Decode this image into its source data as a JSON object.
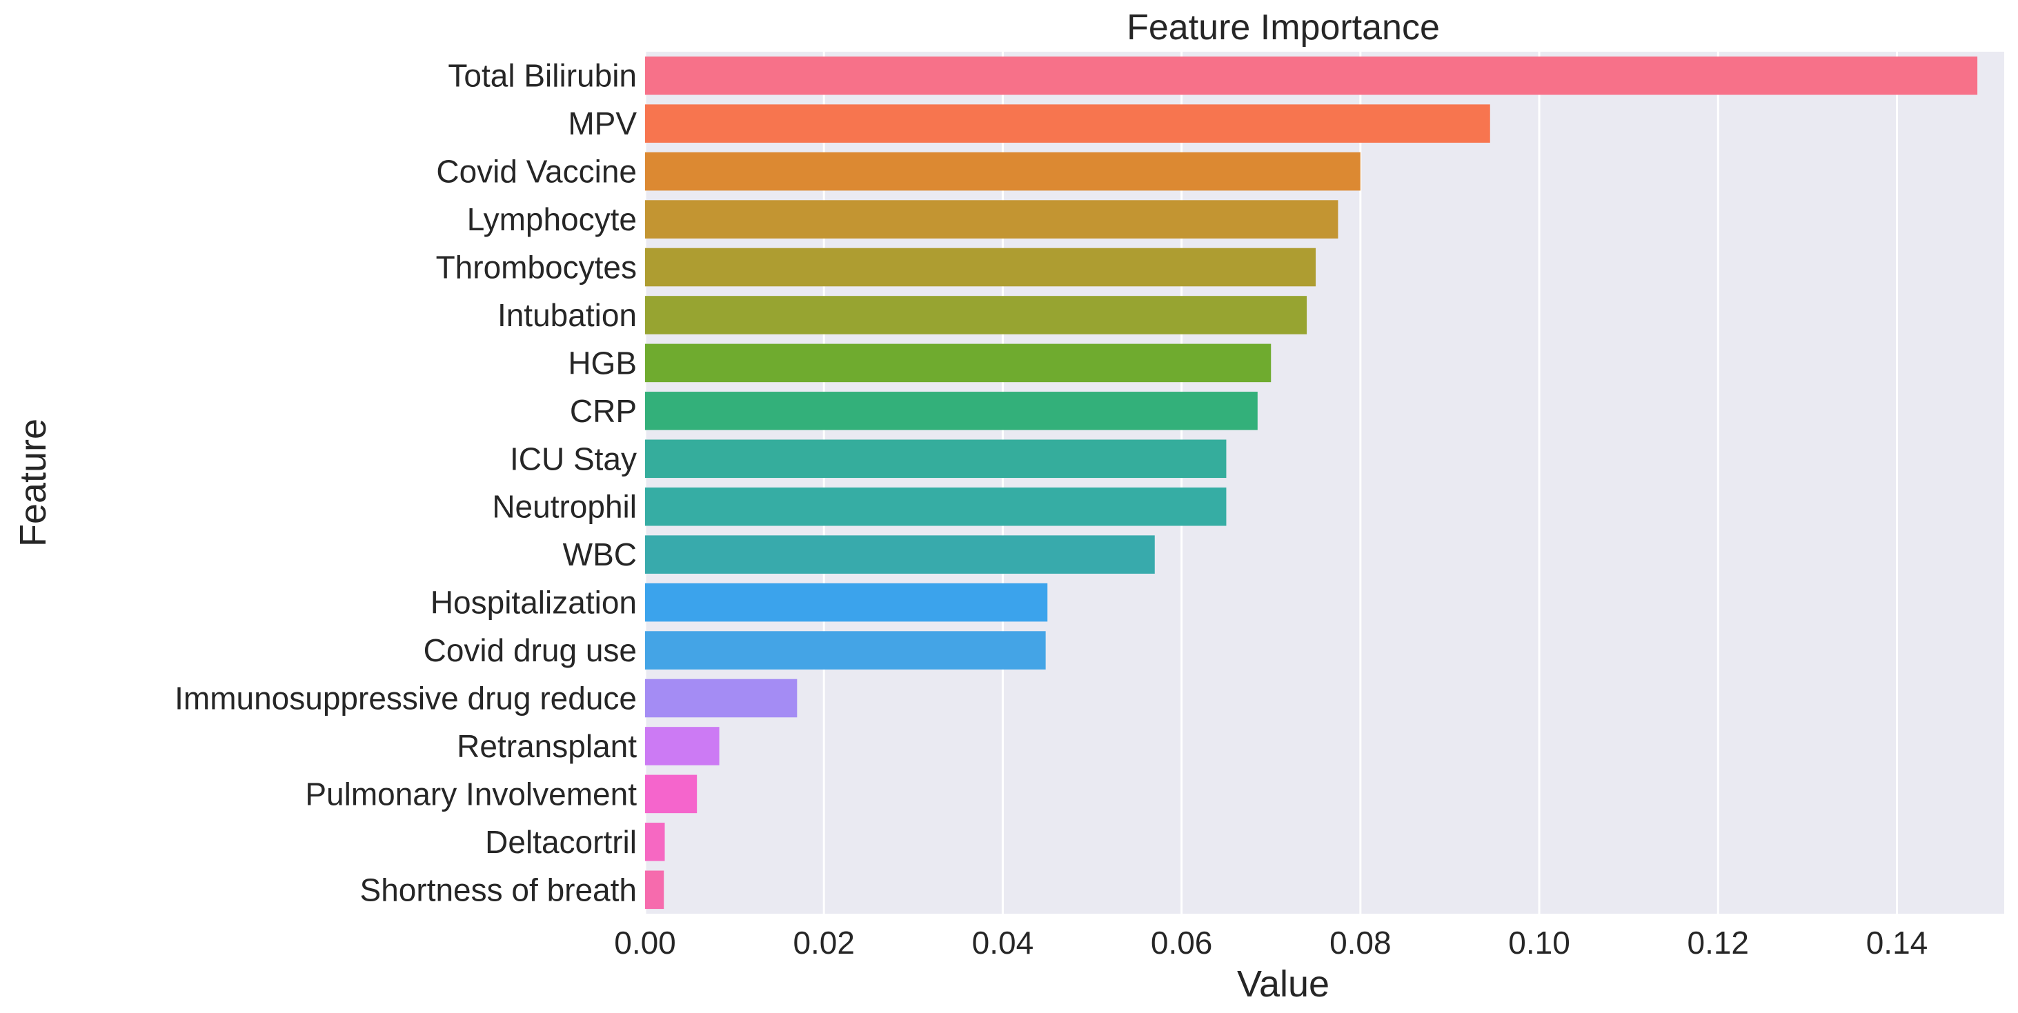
{
  "chart_data": {
    "type": "bar",
    "orientation": "horizontal",
    "title": "Feature Importance",
    "xlabel": "Value",
    "ylabel": "Feature",
    "xlim": [
      0,
      0.152
    ],
    "xticks": [
      "0.00",
      "0.02",
      "0.04",
      "0.06",
      "0.08",
      "0.10",
      "0.12",
      "0.14"
    ],
    "xtick_values": [
      0,
      0.02,
      0.04,
      0.06,
      0.08,
      0.1,
      0.12,
      0.14
    ],
    "grid": true,
    "legend": "none",
    "categories": [
      "Total Bilirubin",
      "MPV",
      "Covid Vaccine",
      "Lymphocyte",
      "Thrombocytes",
      "Intubation",
      "HGB",
      "CRP",
      "ICU Stay",
      "Neutrophil",
      "WBC",
      "Hospitalization",
      "Covid drug use",
      "Immunosuppressive drug reduce",
      "Retransplant",
      "Pulmonary Involvement",
      "Deltacortril",
      "Shortness of breath"
    ],
    "values": [
      0.149,
      0.0945,
      0.08,
      0.0775,
      0.075,
      0.074,
      0.07,
      0.0685,
      0.065,
      0.065,
      0.057,
      0.045,
      0.0448,
      0.017,
      0.0083,
      0.0058,
      0.0022,
      0.0021
    ],
    "colors": [
      "#f77189",
      "#f7754f",
      "#dc8932",
      "#c39532",
      "#ae9d31",
      "#97a431",
      "#6fab2f",
      "#33b07a",
      "#35ad9c",
      "#36ada4",
      "#38aaac",
      "#3ba3ec",
      "#44a4e6",
      "#a48cf4",
      "#cc7af4",
      "#f565cc",
      "#f668c2",
      "#f66bad"
    ],
    "background": "#eaeaf2",
    "gridline_color": "#ffffff"
  }
}
